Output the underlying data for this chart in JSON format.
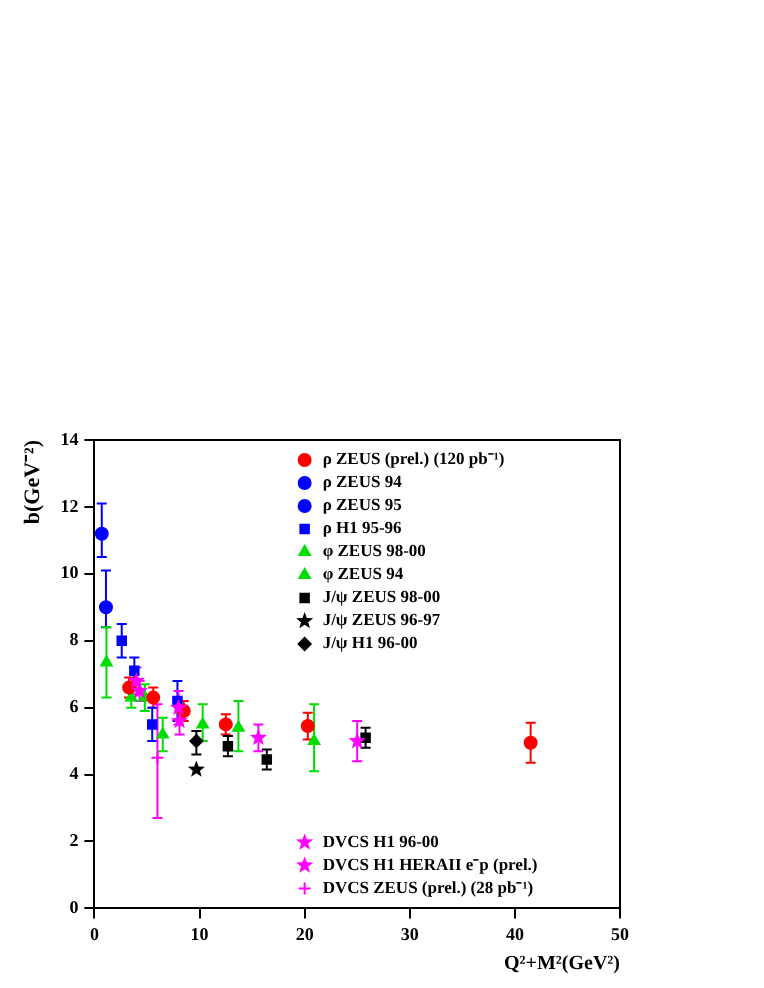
{
  "chart_data": {
    "type": "scatter",
    "xlabel": "Q²+M²(GeV²)",
    "ylabel": "b(GeV⁻²)",
    "xlim": [
      0,
      50
    ],
    "xticks": [
      0,
      10,
      20,
      30,
      40,
      50
    ],
    "ylim": [
      0,
      14
    ],
    "yticks": [
      0,
      2,
      4,
      6,
      8,
      10,
      12,
      14
    ],
    "grid": false,
    "legend": "right",
    "series": [
      {
        "name": "ρ ZEUS (prel.) (120 pb⁻¹)",
        "color": "#ff0000",
        "marker": "circle",
        "x": [
          3.3,
          5.6,
          8.5,
          12.5,
          20.3,
          41.5
        ],
        "values": [
          6.6,
          6.3,
          5.9,
          5.5,
          5.45,
          4.95
        ],
        "errors": [
          0.3,
          0.3,
          0.3,
          0.3,
          0.4,
          0.6
        ]
      },
      {
        "name": "ρ ZEUS 94",
        "color": "#0000ff",
        "marker": "circle",
        "x": [
          0.7
        ],
        "values": [
          11.2
        ],
        "errors": [
          [
            10.5,
            12.1
          ]
        ]
      },
      {
        "name": "ρ ZEUS 95",
        "color": "#0000ff",
        "marker": "circle",
        "x": [
          1.1
        ],
        "values": [
          9.0
        ],
        "errors": [
          [
            8.4,
            10.1
          ]
        ]
      },
      {
        "name": "ρ H1 95-96",
        "color": "#0000ff",
        "marker": "square",
        "x": [
          2.6,
          3.8,
          5.5,
          7.9
        ],
        "values": [
          8.0,
          7.1,
          5.5,
          6.2
        ],
        "errors": [
          0.5,
          0.4,
          0.5,
          0.6
        ]
      },
      {
        "name": "φ ZEUS 98-00",
        "color": "#00dd00",
        "marker": "triangle",
        "x": [
          3.5,
          4.8,
          6.5,
          10.3,
          13.7,
          20.9
        ],
        "values": [
          6.3,
          6.3,
          5.2,
          5.5,
          5.4,
          5.0
        ],
        "errors": [
          0.3,
          0.4,
          0.5,
          [
            5.0,
            6.1
          ],
          [
            4.7,
            6.2
          ],
          [
            4.1,
            6.1
          ]
        ]
      },
      {
        "name": "φ ZEUS 94",
        "color": "#00dd00",
        "marker": "triangle",
        "x": [
          1.15
        ],
        "values": [
          7.35
        ],
        "errors": [
          [
            6.3,
            8.4
          ]
        ]
      },
      {
        "name": "J/ψ ZEUS 98-00",
        "color": "#000000",
        "marker": "square",
        "x": [
          12.7,
          16.4,
          25.8
        ],
        "values": [
          4.85,
          4.45,
          5.1
        ],
        "errors": [
          0.3,
          0.3,
          0.3
        ]
      },
      {
        "name": "J/ψ ZEUS 96-97",
        "color": "#000000",
        "marker": "star",
        "x": [
          9.7
        ],
        "values": [
          4.15
        ]
      },
      {
        "name": "J/ψ H1 96-00",
        "color": "#000000",
        "marker": "diamond",
        "x": [
          9.7
        ],
        "values": [
          5.0
        ],
        "errors": [
          [
            4.6,
            5.3
          ]
        ]
      },
      {
        "name": "DVCS H1 96-00",
        "color": "#ff00ff",
        "marker": "star",
        "x": [
          4.0,
          8.0,
          15.6,
          25.0
        ],
        "values": [
          6.8,
          6.0,
          5.1,
          5.0
        ],
        "errors": [
          0.4,
          0.5,
          0.4,
          0.6
        ]
      },
      {
        "name": "DVCS H1 HERAII e⁻p (prel.)",
        "color": "#ff00ff",
        "marker": "star",
        "x": [
          4.3,
          8.1
        ],
        "values": [
          6.5,
          5.6
        ],
        "errors": [
          0.3,
          0.4
        ]
      },
      {
        "name": "DVCS ZEUS (prel.) (28 pb⁻¹)",
        "color": "#ff00ff",
        "marker": "cross",
        "x": [
          6.0
        ],
        "values": [
          4.5
        ],
        "errors": [
          [
            2.7,
            6.1
          ]
        ]
      }
    ]
  }
}
